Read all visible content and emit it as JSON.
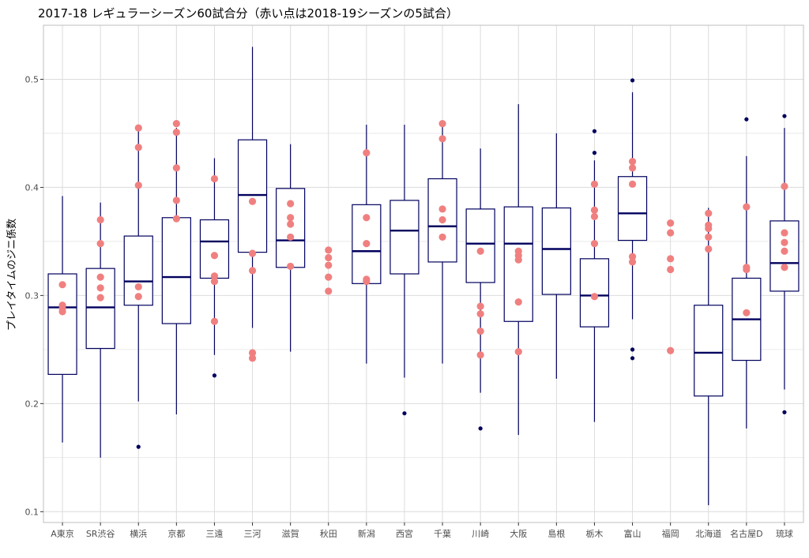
{
  "chart_data": {
    "type": "boxplot",
    "title": "2017-18 レギュラーシーズン60試合分（赤い点は2018-19シーズンの5試合）",
    "xlabel": "",
    "ylabel": "プレイタイムのジニ係数",
    "ylim": [
      0.09,
      0.55
    ],
    "yticks": [
      0.1,
      0.2,
      0.3,
      0.4,
      0.5
    ],
    "ytick_labels": [
      "0.1",
      "0.2",
      "0.3",
      "0.4",
      "0.5"
    ],
    "grid": true,
    "colors": {
      "box_line": "#00005e",
      "outlier": "#00005e",
      "points": "#f08080",
      "grid": "#dcdcdc",
      "border": "#bfbfbf"
    },
    "categories": [
      "A東京",
      "SR渋谷",
      "横浜",
      "京都",
      "三遠",
      "三河",
      "滋賀",
      "秋田",
      "新潟",
      "西宮",
      "千葉",
      "川崎",
      "大阪",
      "島根",
      "栃木",
      "富山",
      "福岡",
      "北海道",
      "名古屋D",
      "琉球"
    ],
    "boxes": [
      {
        "whisker_low": 0.164,
        "q1": 0.227,
        "median": 0.289,
        "q3": 0.32,
        "whisker_high": 0.392,
        "outliers": []
      },
      {
        "whisker_low": 0.15,
        "q1": 0.251,
        "median": 0.289,
        "q3": 0.325,
        "whisker_high": 0.386,
        "outliers": []
      },
      {
        "whisker_low": 0.202,
        "q1": 0.291,
        "median": 0.313,
        "q3": 0.355,
        "whisker_high": 0.455,
        "outliers": [
          0.16
        ]
      },
      {
        "whisker_low": 0.19,
        "q1": 0.274,
        "median": 0.317,
        "q3": 0.372,
        "whisker_high": 0.455,
        "outliers": []
      },
      {
        "whisker_low": 0.245,
        "q1": 0.316,
        "median": 0.35,
        "q3": 0.37,
        "whisker_high": 0.427,
        "outliers": [
          0.226
        ]
      },
      {
        "whisker_low": 0.27,
        "q1": 0.34,
        "median": 0.393,
        "q3": 0.444,
        "whisker_high": 0.53,
        "outliers": []
      },
      {
        "whisker_low": 0.248,
        "q1": 0.326,
        "median": 0.351,
        "q3": 0.399,
        "whisker_high": 0.44,
        "outliers": []
      },
      null,
      {
        "whisker_low": 0.237,
        "q1": 0.311,
        "median": 0.341,
        "q3": 0.384,
        "whisker_high": 0.458,
        "outliers": []
      },
      {
        "whisker_low": 0.224,
        "q1": 0.32,
        "median": 0.36,
        "q3": 0.388,
        "whisker_high": 0.458,
        "outliers": [
          0.191
        ]
      },
      {
        "whisker_low": 0.237,
        "q1": 0.331,
        "median": 0.364,
        "q3": 0.408,
        "whisker_high": 0.457,
        "outliers": []
      },
      {
        "whisker_low": 0.21,
        "q1": 0.312,
        "median": 0.348,
        "q3": 0.38,
        "whisker_high": 0.436,
        "outliers": [
          0.177
        ]
      },
      {
        "whisker_low": 0.171,
        "q1": 0.276,
        "median": 0.348,
        "q3": 0.382,
        "whisker_high": 0.477,
        "outliers": []
      },
      {
        "whisker_low": 0.223,
        "q1": 0.301,
        "median": 0.343,
        "q3": 0.381,
        "whisker_high": 0.45,
        "outliers": []
      },
      {
        "whisker_low": 0.183,
        "q1": 0.271,
        "median": 0.3,
        "q3": 0.334,
        "whisker_high": 0.425,
        "outliers": [
          0.452,
          0.432
        ]
      },
      {
        "whisker_low": 0.278,
        "q1": 0.351,
        "median": 0.376,
        "q3": 0.41,
        "whisker_high": 0.488,
        "outliers": [
          0.499,
          0.25,
          0.242
        ]
      },
      null,
      {
        "whisker_low": 0.106,
        "q1": 0.207,
        "median": 0.247,
        "q3": 0.291,
        "whisker_high": 0.381,
        "outliers": []
      },
      {
        "whisker_low": 0.177,
        "q1": 0.24,
        "median": 0.278,
        "q3": 0.316,
        "whisker_high": 0.429,
        "outliers": [
          0.463
        ]
      },
      {
        "whisker_low": 0.213,
        "q1": 0.304,
        "median": 0.33,
        "q3": 0.369,
        "whisker_high": 0.455,
        "outliers": [
          0.466,
          0.192
        ]
      }
    ],
    "points_2018_19": [
      [
        0.31,
        0.291,
        0.288,
        0.285
      ],
      [
        0.37,
        0.348,
        0.317,
        0.307,
        0.298
      ],
      [
        0.455,
        0.437,
        0.402,
        0.308,
        0.299
      ],
      [
        0.459,
        0.451,
        0.418,
        0.388,
        0.371
      ],
      [
        0.408,
        0.337,
        0.318,
        0.313,
        0.276
      ],
      [
        0.387,
        0.339,
        0.323,
        0.247,
        0.242
      ],
      [
        0.385,
        0.372,
        0.366,
        0.354,
        0.327
      ],
      [
        0.342,
        0.335,
        0.328,
        0.317,
        0.304
      ],
      [
        0.432,
        0.372,
        0.348,
        0.315,
        0.313
      ],
      [],
      [
        0.459,
        0.445,
        0.38,
        0.37,
        0.354
      ],
      [
        0.341,
        0.29,
        0.283,
        0.267,
        0.245
      ],
      [
        0.341,
        0.337,
        0.333,
        0.294,
        0.248
      ],
      [],
      [
        0.403,
        0.379,
        0.373,
        0.348,
        0.299
      ],
      [
        0.424,
        0.418,
        0.403,
        0.336,
        0.331
      ],
      [
        0.367,
        0.358,
        0.334,
        0.324,
        0.249
      ],
      [
        0.376,
        0.365,
        0.362,
        0.354,
        0.343
      ],
      [
        0.382,
        0.326,
        0.324,
        0.284
      ],
      [
        0.401,
        0.358,
        0.349,
        0.341,
        0.326
      ]
    ]
  }
}
